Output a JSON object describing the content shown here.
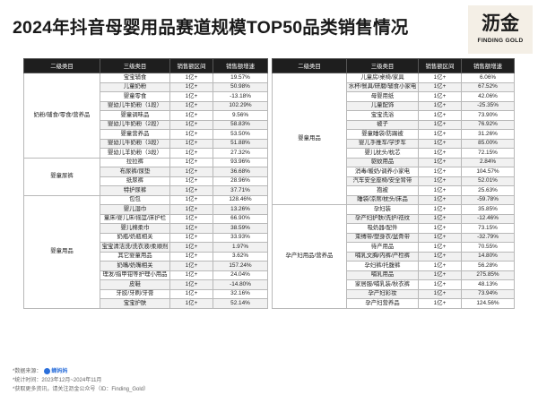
{
  "title": "2024年抖音母婴用品赛道规模TOP50品类销售情况",
  "logo": {
    "cn": "沥金",
    "en": "FINDING GOLD"
  },
  "headers": [
    "二级类目",
    "三级类目",
    "销售额区间",
    "销售额增速"
  ],
  "left_groups": [
    {
      "name": "奶粉/辅食/零食/营养品",
      "rows": [
        [
          "宝宝辅食",
          "1亿+",
          "19.57%"
        ],
        [
          "儿童奶粉",
          "1亿+",
          "50.98%"
        ],
        [
          "婴童零食",
          "1亿+",
          "-13.18%"
        ],
        [
          "婴幼儿牛奶粉（1段）",
          "1亿+",
          "102.29%"
        ],
        [
          "婴童调味品",
          "1亿+",
          "9.56%"
        ],
        [
          "婴幼儿牛奶粉（2段）",
          "1亿+",
          "58.83%"
        ],
        [
          "婴童营养品",
          "1亿+",
          "53.50%"
        ],
        [
          "婴幼儿牛奶粉（3段）",
          "1亿+",
          "51.88%"
        ],
        [
          "婴幼儿羊奶粉（3段）",
          "1亿+",
          "27.32%"
        ]
      ]
    },
    {
      "name": "婴童尿裤",
      "rows": [
        [
          "拉拉裤",
          "1亿+",
          "93.96%"
        ],
        [
          "布尿裤/尿垫",
          "1亿+",
          "36.68%"
        ],
        [
          "纸尿裤",
          "1亿+",
          "28.96%"
        ],
        [
          "特护尿裤",
          "1亿+",
          "37.71%"
        ]
      ]
    },
    {
      "name": "婴童用品",
      "rows": [
        [
          "包包",
          "1亿+",
          "128.46%"
        ],
        [
          "婴儿湿巾",
          "1亿+",
          "13.26%"
        ],
        [
          "童床/婴儿床/摇篮/床护栏",
          "1亿+",
          "66.90%"
        ],
        [
          "婴儿棉柔巾",
          "1亿+",
          "38.59%"
        ],
        [
          "奶瓶/奶瓶相关",
          "1亿+",
          "33.93%"
        ],
        [
          "宝宝清洁洗/洗衣液/柔顺剂",
          "1亿+",
          "1.97%"
        ],
        [
          "其它婴童用品",
          "1亿+",
          "3.62%"
        ],
        [
          "奶嘴/奶嘴相关",
          "1亿+",
          "157.24%"
        ],
        [
          "理发/指甲钳等护理小用品",
          "1亿+",
          "24.04%"
        ],
        [
          "皮鞋",
          "1亿+",
          "-14.80%"
        ],
        [
          "牙胶/牙刷/牙膏",
          "1亿+",
          "32.16%"
        ],
        [
          "宝宝护肤",
          "1亿+",
          "52.14%"
        ]
      ]
    }
  ],
  "right_groups": [
    {
      "name": "婴童用品",
      "rows": [
        [
          "儿童房/桌椅/家具",
          "1亿+",
          "6.06%"
        ],
        [
          "水杯/餐具/研磨/辅食小家电",
          "1亿+",
          "67.52%"
        ],
        [
          "母婴用纸",
          "1亿+",
          "42.06%"
        ],
        [
          "儿童配饰",
          "1亿+",
          "-25.35%"
        ],
        [
          "宝宝洗浴",
          "1亿+",
          "73.90%"
        ],
        [
          "被子",
          "1亿+",
          "76.92%"
        ],
        [
          "婴童睡袋/防踢被",
          "1亿+",
          "31.26%"
        ],
        [
          "婴儿手推车/学步车",
          "1亿+",
          "85.00%"
        ],
        [
          "婴儿枕头/枕芯",
          "1亿+",
          "72.15%"
        ],
        [
          "驱蚊用品",
          "1亿+",
          "2.84%"
        ],
        [
          "消毒/暖奶/调养小家电",
          "1亿+",
          "104.57%"
        ],
        [
          "汽车安全座椅/安全背带",
          "1亿+",
          "52.01%"
        ],
        [
          "抱被",
          "1亿+",
          "25.63%"
        ],
        [
          "睡袋/凉席/枕头/床品",
          "1亿+",
          "-59.78%"
        ]
      ]
    },
    {
      "name": "孕产妇用品/营养品",
      "rows": [
        [
          "孕妇装",
          "1亿+",
          "35.85%"
        ],
        [
          "孕产妇护肤/洗护/祛纹",
          "1亿+",
          "-12.46%"
        ],
        [
          "吸奶器/配件",
          "1亿+",
          "73.15%"
        ],
        [
          "束缚带/塑身衣/盆骨带",
          "1亿+",
          "-32.79%"
        ],
        [
          "待产用品",
          "1亿+",
          "70.55%"
        ],
        [
          "哺乳文胸/内裤/产检裤",
          "1亿+",
          "14.80%"
        ],
        [
          "孕妇裤/托腹裤",
          "1亿+",
          "56.28%"
        ],
        [
          "哺乳用品",
          "1亿+",
          "275.85%"
        ],
        [
          "家居服/哺乳装/秋衣裤",
          "1亿+",
          "48.13%"
        ],
        [
          "孕产妇彩妆",
          "1亿+",
          "73.94%"
        ],
        [
          "孕产妇营养品",
          "1亿+",
          "124.56%"
        ]
      ]
    }
  ],
  "footnotes": {
    "source_prefix": "*数据来源：",
    "source_name": "蝉妈妈",
    "period": "*统计时间：2023年12月~2024年11月",
    "more": "*获取更多资讯，请关注沥金公众号（ID：Finding_Gold）"
  }
}
